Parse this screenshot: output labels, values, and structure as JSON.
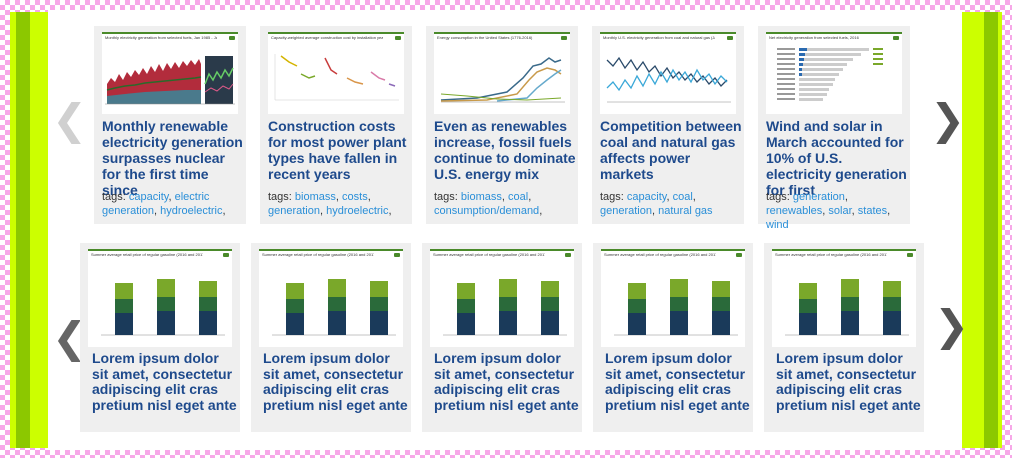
{
  "nav": {
    "prev_label": "❮",
    "next_label": "❯"
  },
  "row1": [
    {
      "thumb_title": "Monthly electricity generation from selected fuels, Jan 1985 - Jan 2017",
      "title": "Monthly renewable electricity generation surpasses nuclear for the first time since",
      "tags_label": "tags:",
      "tags": [
        "capacity",
        "electric generation",
        "hydroelectric"
      ],
      "tags_trail": ","
    },
    {
      "thumb_title": "Capacity-weighted average construction cost by installation year (2013-2015)",
      "title": "Construction costs for most power plant types have fallen in recent years",
      "tags_label": "tags:",
      "tags": [
        "biomass",
        "costs",
        "generation",
        "hydroelectric"
      ],
      "tags_trail": ","
    },
    {
      "thumb_title": "Energy consumption in the United States (1776-2016)",
      "title": "Even as renewables increase, fossil fuels continue to dominate U.S. energy mix",
      "tags_label": "tags:",
      "tags": [
        "biomass",
        "coal",
        "consumption/demand"
      ],
      "tags_trail": ","
    },
    {
      "thumb_title": "Monthly U.S. electricity generation from coal and natural gas (Jan 2006-Mar 2017)",
      "title": "Competition between coal and natural gas affects power markets",
      "tags_label": "tags:",
      "tags": [
        "capacity",
        "coal",
        "generation",
        "natural gas"
      ],
      "tags_trail": ""
    },
    {
      "thumb_title": "Net electricity generation from selected fuels, 2016",
      "title": "Wind and solar in March accounted for 10% of U.S. electricity generation for first",
      "tags_label": "tags:",
      "tags": [
        "generation",
        "renewables",
        "solar",
        "states",
        "wind"
      ],
      "tags_trail": ""
    }
  ],
  "row2": [
    {
      "thumb_title": "Summer average retail price of regular gasoline (2016 and 2017)",
      "title": "Lorem ipsum dolor sit amet, consectetur adipiscing elit cras pretium nisl eget ante"
    },
    {
      "thumb_title": "Summer average retail price of regular gasoline (2016 and 2017)",
      "title": "Lorem ipsum dolor sit amet, consectetur adipiscing elit cras pretium nisl eget ante"
    },
    {
      "thumb_title": "Summer average retail price of regular gasoline (2016 and 2017)",
      "title": "Lorem ipsum dolor sit amet, consectetur adipiscing elit cras pretium nisl eget ante"
    },
    {
      "thumb_title": "Summer average retail price of regular gasoline (2016 and 2017)",
      "title": "Lorem ipsum dolor sit amet, consectetur adipiscing elit cras pretium nisl eget ante"
    },
    {
      "thumb_title": "Summer average retail price of regular gasoline (2016 and 2017)",
      "title": "Lorem ipsum dolor sit amet, consectetur adipiscing elit cras pretium nisl eget ante"
    }
  ],
  "colors": {
    "title": "#1e4a8c",
    "tag_link": "#2a8fd8",
    "card_bg": "#efefef",
    "frame_outer": "#ccff00",
    "frame_inner": "#8cc800",
    "checker": "#f7a8e8"
  }
}
